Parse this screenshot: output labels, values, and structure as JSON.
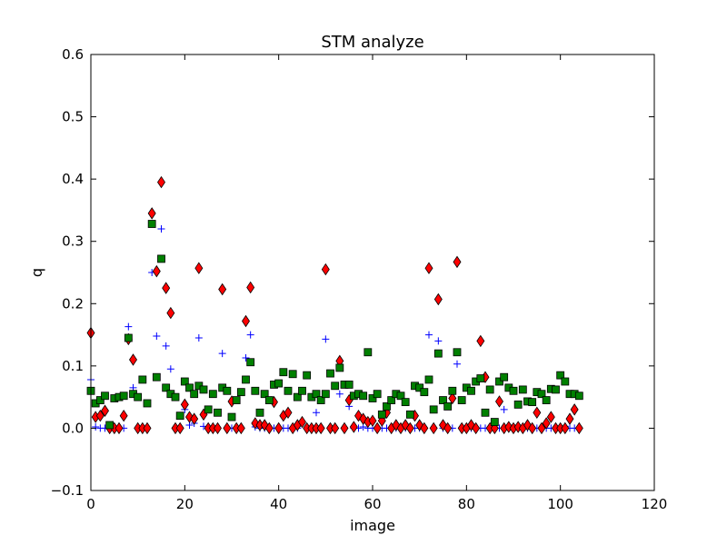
{
  "chart_data": {
    "type": "scatter",
    "title": "STM analyze",
    "xlabel": "image",
    "ylabel": "q",
    "xlim": [
      0,
      120
    ],
    "ylim": [
      -0.1,
      0.6
    ],
    "xticks": [
      "0",
      "20",
      "40",
      "60",
      "80",
      "100",
      "120"
    ],
    "yticks": [
      "−0.1",
      "0.0",
      "0.1",
      "0.2",
      "0.3",
      "0.4",
      "0.5",
      "0.6"
    ],
    "grid": false,
    "legend": "none",
    "series": [
      {
        "marker": "plus",
        "color": "#0000ff",
        "y": [
          0.078,
          0.002,
          0.0,
          0.0,
          0.003,
          0.0,
          0.0,
          0.0,
          0.163,
          0.065,
          0.0,
          0.0,
          0.0,
          0.25,
          0.148,
          0.32,
          0.132,
          0.095,
          0.0,
          0.0,
          0.03,
          0.005,
          0.008,
          0.145,
          0.003,
          0.0,
          0.0,
          0.0,
          0.12,
          0.0,
          0.0,
          0.0,
          0.0,
          0.113,
          0.15,
          0.002,
          0.0,
          0.0,
          0.0,
          0.0,
          0.0,
          0.0,
          0.0,
          0.0,
          0.0,
          0.01,
          0.0,
          0.0,
          0.025,
          0.0,
          0.143,
          0.0,
          0.0,
          0.055,
          0.0,
          0.035,
          0.0,
          0.0,
          0.002,
          0.0,
          0.0,
          0.0,
          0.0,
          0.0,
          0.0,
          0.0,
          0.0,
          0.0,
          0.0,
          0.0,
          0.0,
          0.0,
          0.15,
          0.0,
          0.14,
          0.0,
          0.0,
          0.0,
          0.103,
          0.0,
          0.0,
          0.0,
          0.0,
          0.0,
          0.0,
          0.0,
          0.0,
          0.0,
          0.03,
          0.0,
          0.0,
          0.0,
          0.0,
          0.0,
          0.0,
          0.0,
          0.0,
          0.0,
          0.0,
          0.0,
          0.0,
          0.003,
          0.0,
          0.0,
          0.0
        ]
      },
      {
        "marker": "diamond",
        "color": "#ff0000",
        "y": [
          0.153,
          0.018,
          0.02,
          0.028,
          0.0,
          0.0,
          0.0,
          0.02,
          0.143,
          0.11,
          0.0,
          0.0,
          0.0,
          0.345,
          0.252,
          0.395,
          0.225,
          0.185,
          0.0,
          0.0,
          0.038,
          0.018,
          0.015,
          0.257,
          0.022,
          0.0,
          0.0,
          0.0,
          0.223,
          0.0,
          0.043,
          0.0,
          0.0,
          0.172,
          0.226,
          0.008,
          0.005,
          0.005,
          0.0,
          0.042,
          0.0,
          0.02,
          0.025,
          0.0,
          0.005,
          0.01,
          0.0,
          0.0,
          0.0,
          0.0,
          0.255,
          0.0,
          0.0,
          0.108,
          0.0,
          0.045,
          0.002,
          0.02,
          0.015,
          0.01,
          0.012,
          0.0,
          0.012,
          0.025,
          0.0,
          0.005,
          0.0,
          0.005,
          0.0,
          0.02,
          0.005,
          0.0,
          0.257,
          0.0,
          0.207,
          0.005,
          0.0,
          0.048,
          0.267,
          0.0,
          0.0,
          0.005,
          0.0,
          0.14,
          0.082,
          0.0,
          0.0,
          0.043,
          0.0,
          0.002,
          0.0,
          0.002,
          0.0,
          0.005,
          0.0,
          0.025,
          0.0,
          0.008,
          0.018,
          0.0,
          0.0,
          0.0,
          0.015,
          0.03,
          0.0
        ]
      },
      {
        "marker": "square",
        "color": "#008000",
        "y": [
          0.06,
          0.04,
          0.045,
          0.052,
          0.005,
          0.048,
          0.05,
          0.052,
          0.145,
          0.055,
          0.05,
          0.078,
          0.04,
          0.328,
          0.082,
          0.272,
          0.065,
          0.055,
          0.05,
          0.02,
          0.075,
          0.065,
          0.055,
          0.068,
          0.062,
          0.03,
          0.055,
          0.025,
          0.065,
          0.06,
          0.018,
          0.045,
          0.058,
          0.078,
          0.106,
          0.06,
          0.025,
          0.055,
          0.045,
          0.07,
          0.072,
          0.09,
          0.06,
          0.087,
          0.05,
          0.06,
          0.085,
          0.05,
          0.055,
          0.045,
          0.055,
          0.088,
          0.068,
          0.097,
          0.07,
          0.07,
          0.052,
          0.055,
          0.052,
          0.122,
          0.048,
          0.055,
          0.022,
          0.035,
          0.045,
          0.055,
          0.052,
          0.042,
          0.022,
          0.068,
          0.065,
          0.058,
          0.078,
          0.03,
          0.12,
          0.045,
          0.035,
          0.06,
          0.122,
          0.045,
          0.065,
          0.06,
          0.075,
          0.08,
          0.025,
          0.062,
          0.01,
          0.075,
          0.082,
          0.065,
          0.06,
          0.038,
          0.062,
          0.043,
          0.042,
          0.058,
          0.055,
          0.045,
          0.063,
          0.062,
          0.085,
          0.075,
          0.055,
          0.055,
          0.052
        ]
      }
    ]
  }
}
